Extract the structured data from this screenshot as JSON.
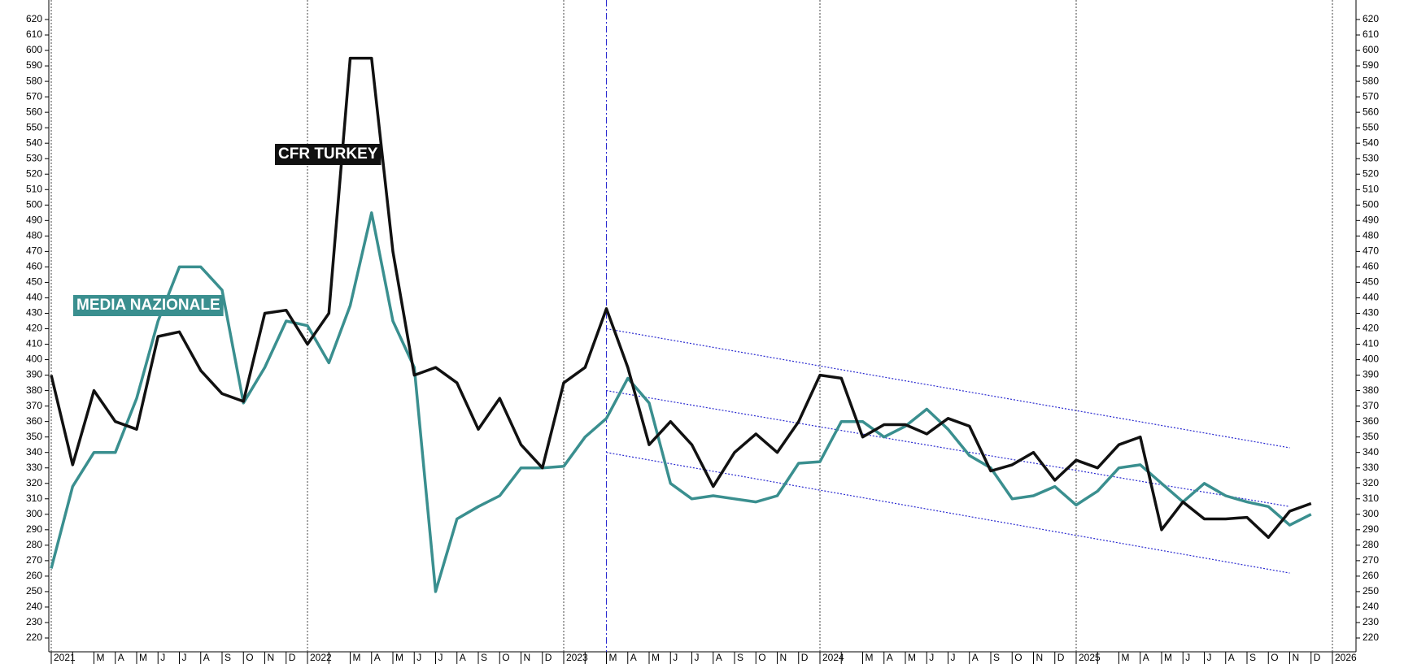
{
  "chart_data": {
    "type": "line",
    "categories": [
      "2021",
      null,
      "M",
      "A",
      "M",
      "J",
      "J",
      "A",
      "S",
      "O",
      "N",
      "D",
      "2022",
      null,
      "M",
      "A",
      "M",
      "J",
      "J",
      "A",
      "S",
      "O",
      "N",
      "D",
      "2023",
      null,
      "M",
      "A",
      "M",
      "J",
      "J",
      "A",
      "S",
      "O",
      "N",
      "D",
      "2024",
      null,
      "M",
      "A",
      "M",
      "J",
      "J",
      "A",
      "S",
      "O",
      "N",
      "D",
      "2025",
      null,
      "M",
      "A",
      "M",
      "J",
      "J",
      "A",
      "S",
      "O",
      "N",
      "D",
      "2026"
    ],
    "series": [
      {
        "name": "CFR TURKEY",
        "color": "#111111",
        "values": [
          390,
          332,
          380,
          360,
          355,
          415,
          418,
          393,
          378,
          373,
          430,
          432,
          410,
          430,
          595,
          595,
          470,
          390,
          395,
          385,
          355,
          375,
          345,
          330,
          385,
          395,
          433,
          395,
          345,
          360,
          345,
          318,
          340,
          352,
          340,
          360,
          390,
          388,
          350,
          358,
          358,
          352,
          362,
          357,
          328,
          332,
          340,
          322,
          335,
          330,
          345,
          350,
          290,
          308,
          297,
          297,
          298,
          285,
          302,
          307,
          null
        ]
      },
      {
        "name": "MEDIA NAZIONALE",
        "color": "#3a8f8f",
        "values": [
          265,
          318,
          340,
          340,
          375,
          425,
          460,
          460,
          445,
          372,
          395,
          425,
          422,
          398,
          435,
          495,
          425,
          395,
          250,
          297,
          305,
          312,
          330,
          330,
          331,
          350,
          362,
          388,
          372,
          320,
          310,
          312,
          310,
          308,
          312,
          333,
          334,
          360,
          360,
          350,
          357,
          368,
          355,
          338,
          330,
          310,
          312,
          318,
          306,
          315,
          330,
          332,
          320,
          308,
          320,
          312,
          308,
          305,
          293,
          300,
          null
        ]
      }
    ],
    "trend_channel": {
      "x": [
        26,
        58
      ],
      "lines": [
        [
          420,
          343
        ],
        [
          380,
          305
        ],
        [
          340,
          262
        ]
      ],
      "color": "#2a2ad0"
    },
    "ylim": [
      220,
      620
    ],
    "yticks": [
      220,
      230,
      240,
      250,
      260,
      270,
      280,
      290,
      300,
      310,
      320,
      330,
      340,
      350,
      360,
      370,
      380,
      390,
      400,
      410,
      420,
      430,
      440,
      450,
      460,
      470,
      480,
      490,
      500,
      510,
      520,
      530,
      540,
      550,
      560,
      570,
      580,
      590,
      600,
      610,
      620
    ]
  }
}
